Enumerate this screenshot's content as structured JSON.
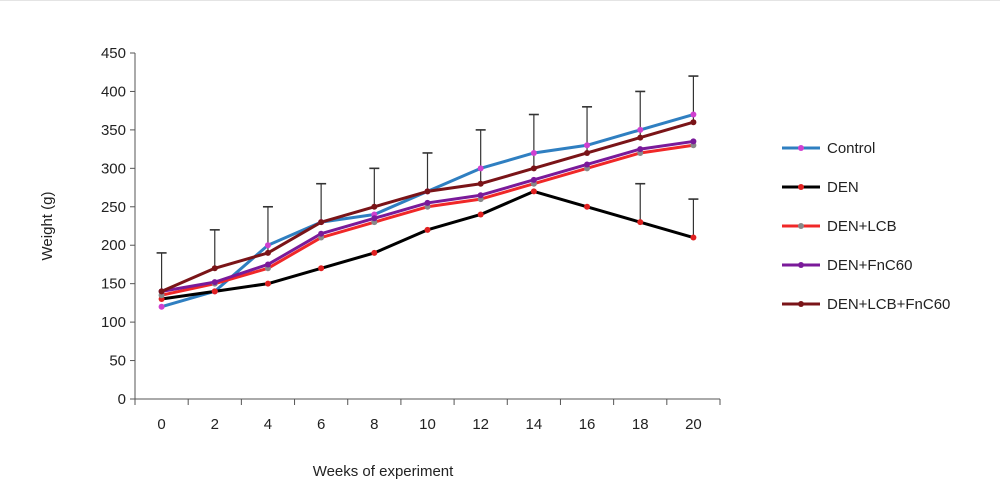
{
  "chart_data": {
    "type": "line",
    "title": "",
    "xlabel": "Weeks of experiment",
    "ylabel": "Weight (g)",
    "x": [
      0,
      2,
      4,
      6,
      8,
      10,
      12,
      14,
      16,
      18,
      20
    ],
    "xlim": [
      -1,
      21
    ],
    "ylim": [
      0,
      450
    ],
    "yticks": [
      0,
      50,
      100,
      150,
      200,
      250,
      300,
      350,
      400,
      450
    ],
    "grid": false,
    "legend_position": "right",
    "series": [
      {
        "name": "Control",
        "color": "#2f7fc1",
        "marker_color": "#d040d0",
        "values": [
          120,
          140,
          200,
          230,
          240,
          270,
          300,
          320,
          330,
          350,
          370
        ],
        "error": [
          0,
          0,
          0,
          0,
          0,
          0,
          0,
          0,
          0,
          0,
          0
        ]
      },
      {
        "name": "DEN",
        "color": "#000000",
        "marker_color": "#e02020",
        "values": [
          130,
          140,
          150,
          170,
          190,
          220,
          240,
          270,
          250,
          230,
          210
        ],
        "error": [
          0,
          0,
          0,
          0,
          0,
          0,
          0,
          0,
          0,
          50,
          50
        ]
      },
      {
        "name": "DEN+LCB",
        "color": "#f02828",
        "marker_color": "#888888",
        "values": [
          135,
          150,
          170,
          210,
          230,
          250,
          260,
          280,
          300,
          320,
          330
        ],
        "error": [
          0,
          0,
          0,
          0,
          0,
          0,
          0,
          0,
          0,
          0,
          0
        ]
      },
      {
        "name": "DEN+FnC60",
        "color": "#7a1a9a",
        "marker_color": "#7a1a9a",
        "values": [
          140,
          152,
          175,
          215,
          235,
          255,
          265,
          285,
          305,
          325,
          335
        ],
        "error": [
          0,
          0,
          0,
          0,
          0,
          0,
          0,
          0,
          0,
          0,
          0
        ]
      },
      {
        "name": "DEN+LCB+FnC60",
        "color": "#7a1418",
        "marker_color": "#7a1418",
        "values": [
          140,
          170,
          190,
          230,
          250,
          270,
          280,
          300,
          320,
          340,
          360
        ],
        "error": [
          50,
          50,
          60,
          50,
          50,
          50,
          70,
          70,
          60,
          60,
          60
        ]
      }
    ]
  }
}
